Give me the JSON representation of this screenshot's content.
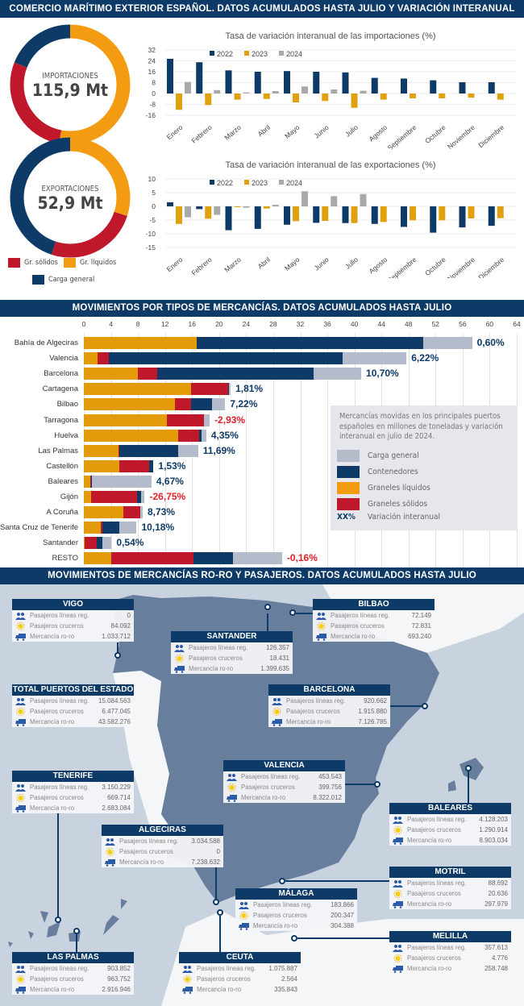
{
  "header": {
    "title": "COMERCIO MARÍTIMO EXTERIOR ESPAÑOL. DATOS ACUMULADOS HASTA JULIO Y VARIACIÓN INTERANUAL"
  },
  "colors": {
    "navy": "#0d3a66",
    "orange": "#f39c12",
    "red": "#c0182b",
    "grey": "#a9a9a9",
    "light": "#b4bccc"
  },
  "donuts": [
    {
      "label": "IMPORTACIONES",
      "value": "115,9 Mt",
      "shares": {
        "liquidos": 0.53,
        "solidos": 0.28,
        "general": 0.19
      }
    },
    {
      "label": "EXPORTACIONES",
      "value": "52,9 Mt",
      "shares": {
        "liquidos": 0.3,
        "solidos": 0.25,
        "general": 0.45
      }
    }
  ],
  "donut_legend": {
    "solidos": "Gr. sólidos",
    "liquidos": "Gr. líquidos",
    "general": "Carga general"
  },
  "chart_data": [
    {
      "type": "bar",
      "title": "Tasa de variación interanual de las importaciones (%)",
      "categories": [
        "Enero",
        "Febrero",
        "Marzo",
        "Abril",
        "Mayo",
        "Junio",
        "Julio",
        "Agosto",
        "Septiembre",
        "Octubre",
        "Noviembre",
        "Diciembre"
      ],
      "yticks": [
        32,
        24,
        16,
        8,
        0,
        -8,
        -16
      ],
      "ylim": [
        -16,
        32
      ],
      "series": [
        {
          "name": "2022",
          "color": "#0d3a66",
          "values": [
            25.5,
            23,
            17,
            16,
            16.5,
            16,
            15.5,
            11.5,
            11,
            9.7,
            8.3,
            8.3
          ]
        },
        {
          "name": "2023",
          "color": "#e0a010",
          "values": [
            -12,
            -8.5,
            -4.5,
            -4,
            -6.5,
            -5.5,
            -10.5,
            -4.5,
            -3.5,
            -3.5,
            -3,
            -4.5
          ]
        },
        {
          "name": "2024",
          "color": "#a9a9a9",
          "values": [
            8.5,
            2.5,
            0.8,
            1.8,
            5.2,
            3,
            2,
            null,
            null,
            null,
            null,
            null
          ]
        }
      ]
    },
    {
      "type": "bar",
      "title": "Tasa de variación interanual de las exportaciones (%)",
      "categories": [
        "Enero",
        "Febrero",
        "Marzo",
        "Abril",
        "Mayo",
        "Junio",
        "Julio",
        "Agosto",
        "Septiembre",
        "Octubre",
        "Noviembre",
        "Diciembre"
      ],
      "yticks": [
        10,
        5,
        0,
        -5,
        -10,
        -15
      ],
      "ylim": [
        -15,
        10
      ],
      "series": [
        {
          "name": "2022",
          "color": "#0d3a66",
          "values": [
            1.5,
            -1,
            -8.7,
            -8.2,
            -6.7,
            -6,
            -6.1,
            -6.4,
            -7.5,
            -9.6,
            -7.7,
            -7.1
          ]
        },
        {
          "name": "2023",
          "color": "#e0a010",
          "values": [
            -6.4,
            -4.5,
            -0.3,
            -0.8,
            -5.4,
            -5.3,
            -6.1,
            -5.7,
            -5.1,
            -5.1,
            -4.4,
            -4.3
          ]
        },
        {
          "name": "2024",
          "color": "#a9a9a9",
          "values": [
            -4,
            -3.1,
            -0.5,
            0.6,
            5.5,
            3.7,
            4.5,
            null,
            null,
            null,
            null,
            null
          ]
        }
      ]
    },
    {
      "type": "bar",
      "orientation": "horizontal-stacked",
      "xlim": [
        0,
        64
      ],
      "xticks": [
        0,
        4,
        8,
        12,
        16,
        20,
        24,
        28,
        32,
        36,
        40,
        44,
        48,
        52,
        56,
        60,
        64
      ],
      "segments": [
        "Graneles líquidos",
        "Graneles sólidos",
        "Contenedores",
        "Carga general"
      ],
      "segment_colors": [
        "#e39b0a",
        "#c0182b",
        "#0d3a66",
        "#b4bccc"
      ],
      "rows": [
        {
          "port": "Bahía de Algeciras",
          "values": [
            16.7,
            0,
            33.5,
            7.2
          ],
          "var": "0,60%"
        },
        {
          "port": "Valencia",
          "values": [
            2.0,
            1.7,
            34.6,
            9.4
          ],
          "var": "6,22%"
        },
        {
          "port": "Barcelona",
          "values": [
            8.0,
            2.8,
            23.2,
            7.0
          ],
          "var": "10,70%"
        },
        {
          "port": "Cartagena",
          "values": [
            15.8,
            5.5,
            0.2,
            0.2
          ],
          "var": "1,81%"
        },
        {
          "port": "Bilbao",
          "values": [
            13.5,
            2.4,
            3.0,
            2.0
          ],
          "var": "7,22%"
        },
        {
          "port": "Tarragona",
          "values": [
            12.3,
            5.4,
            0,
            0.9
          ],
          "var": "-2,93%"
        },
        {
          "port": "Huelva",
          "values": [
            14.0,
            3.0,
            0.4,
            0.7
          ],
          "var": "4,35%"
        },
        {
          "port": "Las Palmas",
          "values": [
            5.1,
            0.2,
            8.7,
            2.9
          ],
          "var": "11,69%"
        },
        {
          "port": "Castellón",
          "values": [
            5.2,
            4.5,
            0.6,
            0
          ],
          "var": "1,53%"
        },
        {
          "port": "Baleares",
          "values": [
            0.9,
            0.2,
            0.1,
            8.8
          ],
          "var": "4,67%"
        },
        {
          "port": "Gijón",
          "values": [
            1.1,
            6.8,
            0.6,
            0.5
          ],
          "var": "-26,75%"
        },
        {
          "port": "A Coruña",
          "values": [
            5.8,
            2.5,
            0,
            0.4
          ],
          "var": "8,73%"
        },
        {
          "port": "Santa Cruz de Tenerife",
          "values": [
            2.5,
            0.2,
            2.5,
            2.6
          ],
          "var": "10,18%"
        },
        {
          "port": "Santander",
          "values": [
            0.1,
            1.8,
            0.8,
            1.4
          ],
          "var": "0,54%"
        },
        {
          "port": "RESTO",
          "values": [
            4.0,
            12.2,
            5.9,
            7.2
          ],
          "var": "-0,16%"
        }
      ]
    }
  ],
  "section2": {
    "title": "MOVIMIENTOS POR TIPOS DE MERCANCÍAS. DATOS ACUMULADOS HASTA JULIO",
    "legend_note": "Mercancías movidas en los principales puertos españoles en millones de toneladas y variación interanual en julio de 2024.",
    "legend": [
      "Carga general",
      "Contenedores",
      "Graneles líquidos",
      "Graneles sólidos"
    ],
    "var_symbol": "XX%",
    "var_label": "Variación interanual"
  },
  "section3": {
    "title": "MOVIMIENTOS DE MERCANCÍAS RO-RO Y PASAJEROS.  DATOS ACUMULADOS HASTA JULIO",
    "row_labels": [
      "Pasajeros líneas reg.",
      "Pasajeros cruceros",
      "Mercancía ro-ro"
    ],
    "ports": [
      {
        "name": "VIGO",
        "values": [
          "0",
          "84.092",
          "1.033.712"
        ]
      },
      {
        "name": "SANTANDER",
        "values": [
          "126.357",
          "18.431",
          "1.399.635"
        ]
      },
      {
        "name": "BILBAO",
        "values": [
          "72.149",
          "72.831",
          "693.240"
        ]
      },
      {
        "name": "TOTAL PUERTOS DEL ESTADO",
        "values": [
          "15.084.563",
          "6.477.045",
          "43.582.276"
        ]
      },
      {
        "name": "BARCELONA",
        "values": [
          "920.662",
          "1.915.880",
          "7.126.785"
        ]
      },
      {
        "name": "TENERIFE",
        "values": [
          "3.150.229",
          "669.714",
          "2.683.084"
        ]
      },
      {
        "name": "VALENCIA",
        "values": [
          "453.543",
          "399.756",
          "8.322.012"
        ]
      },
      {
        "name": "ALGECIRAS",
        "values": [
          "3.034.588",
          "0",
          "7.238.632"
        ]
      },
      {
        "name": "BALEARES",
        "values": [
          "4.128.203",
          "1.290.914",
          "8.903.034"
        ]
      },
      {
        "name": "MOTRIL",
        "values": [
          "88.692",
          "20.636",
          "297.979"
        ]
      },
      {
        "name": "MÁLAGA",
        "values": [
          "183.866",
          "200.347",
          "304.388"
        ]
      },
      {
        "name": "MELILLA",
        "values": [
          "357.613",
          "4.776",
          "258.748"
        ]
      },
      {
        "name": "LAS PALMAS",
        "values": [
          "903.852",
          "963.752",
          "2.916.946"
        ]
      },
      {
        "name": "CEUTA",
        "values": [
          "1.075.887",
          "2.564",
          "335.843"
        ]
      }
    ]
  }
}
